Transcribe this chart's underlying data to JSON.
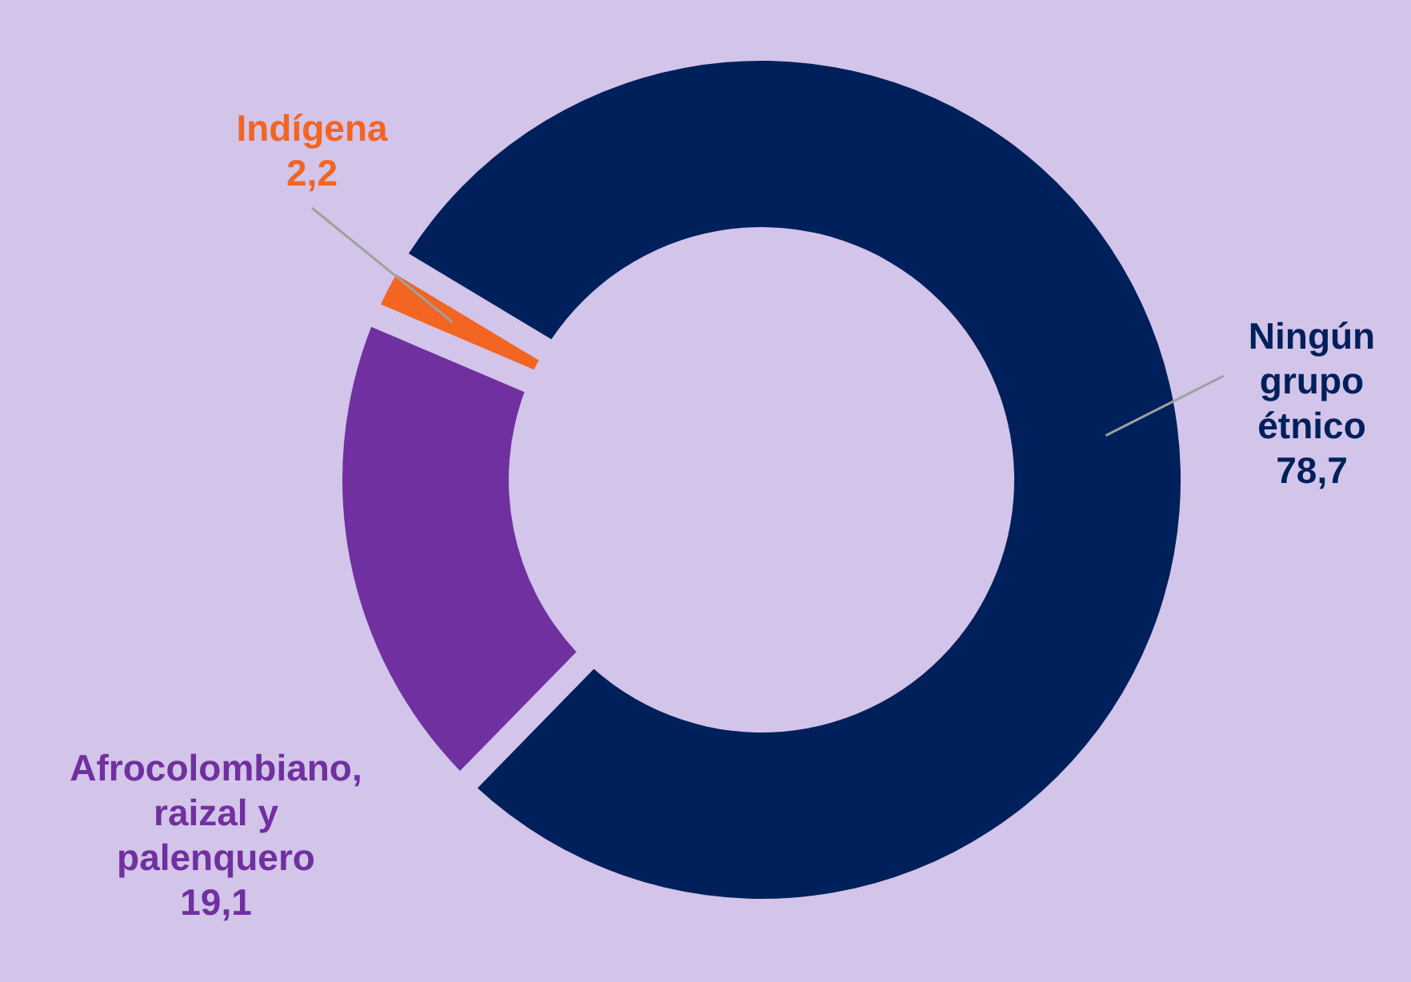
{
  "chart_data": {
    "type": "donut",
    "categories": [
      "Ningún grupo étnico",
      "Afrocolombiano, raizal y palenquero",
      "Indígena"
    ],
    "values": [
      78.7,
      19.1,
      2.2
    ],
    "colors": [
      "#00205b",
      "#7030a0",
      "#f26522"
    ],
    "value_labels": [
      "78,7",
      "19,1",
      "2,2"
    ]
  }
}
